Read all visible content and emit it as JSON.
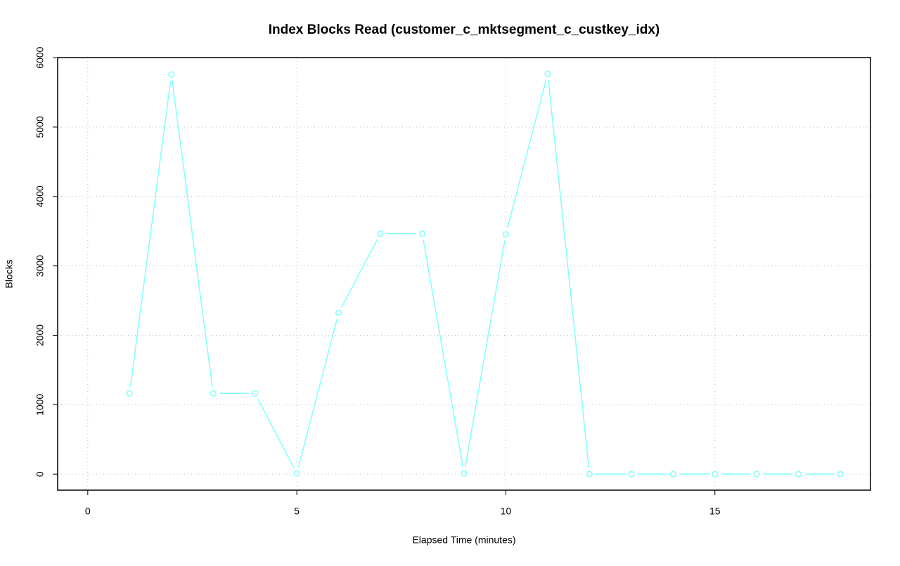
{
  "chart_data": {
    "type": "line",
    "title": "Index Blocks Read (customer_c_mktsegment_c_custkey_idx)",
    "x_label": "Elapsed Time (minutes)",
    "y_label": "Blocks",
    "x": [
      1,
      2,
      3,
      4,
      5,
      6,
      7,
      8,
      9,
      10,
      11,
      12,
      13,
      14,
      15,
      16,
      17,
      18
    ],
    "series": [
      {
        "color": "#7fffff",
        "values": [
          1162,
          5758,
          1162,
          1162,
          10,
          2323,
          3465,
          3465,
          10,
          3455,
          5768,
          0,
          0,
          0,
          0,
          0,
          0,
          0
        ]
      }
    ],
    "xlim": [
      -0.72,
      18.72
    ],
    "xticks": [
      0,
      5,
      10,
      15
    ],
    "ylim": [
      -231,
      6001
    ],
    "yticks": [
      0,
      1000,
      2000,
      3000,
      4000,
      5000,
      6000
    ],
    "grid": true
  }
}
